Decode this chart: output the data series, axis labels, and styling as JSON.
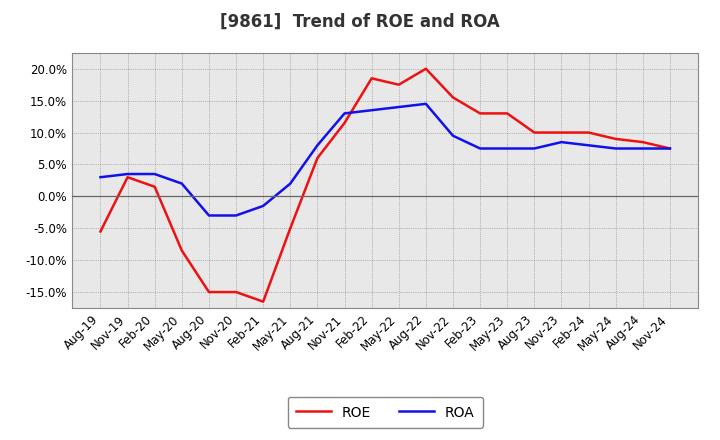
{
  "title": "[9861]  Trend of ROE and ROA",
  "x_labels": [
    "Aug-19",
    "Nov-19",
    "Feb-20",
    "May-20",
    "Aug-20",
    "Nov-20",
    "Feb-21",
    "May-21",
    "Aug-21",
    "Nov-21",
    "Feb-22",
    "May-22",
    "Aug-22",
    "Nov-22",
    "Feb-23",
    "May-23",
    "Aug-23",
    "Nov-23",
    "Feb-24",
    "May-24",
    "Aug-24",
    "Nov-24"
  ],
  "roe": [
    -5.5,
    3.0,
    1.5,
    -8.5,
    -15.0,
    -15.0,
    -16.5,
    -5.0,
    6.0,
    11.5,
    18.5,
    17.5,
    20.0,
    15.5,
    13.0,
    13.0,
    10.0,
    10.0,
    10.0,
    9.0,
    8.5,
    7.5
  ],
  "roa": [
    3.0,
    3.5,
    3.5,
    2.0,
    -3.0,
    -3.0,
    -1.5,
    2.0,
    8.0,
    13.0,
    13.5,
    14.0,
    14.5,
    9.5,
    7.5,
    7.5,
    7.5,
    8.5,
    8.0,
    7.5,
    7.5,
    7.5
  ],
  "roe_color": "#EE1111",
  "roa_color": "#1111EE",
  "ylim": [
    -17.5,
    22.5
  ],
  "yticks": [
    -15.0,
    -10.0,
    -5.0,
    0.0,
    5.0,
    10.0,
    15.0,
    20.0
  ],
  "background_color": "#FFFFFF",
  "plot_bg_color": "#E8E8E8",
  "grid_color": "#555555",
  "line_width": 1.8,
  "title_fontsize": 12,
  "title_color": "#333333",
  "tick_fontsize": 8.5,
  "legend_fontsize": 10
}
